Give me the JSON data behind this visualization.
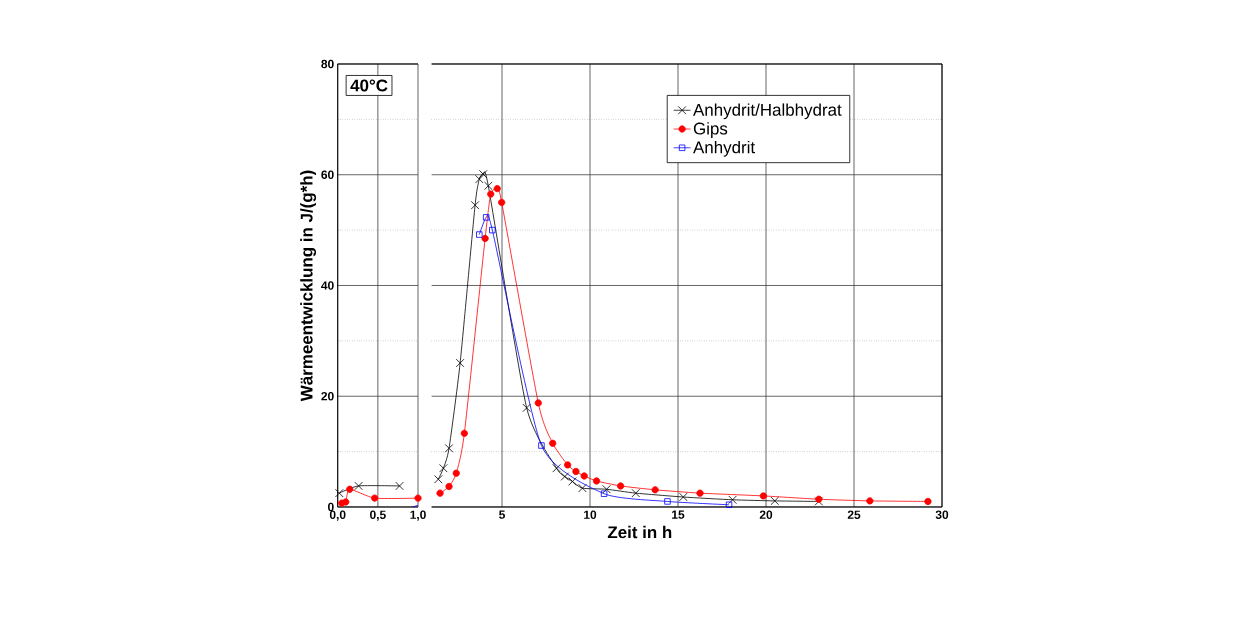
{
  "chart_data": [
    {
      "type": "line",
      "ylabel": "Wärmeentwicklung in J/(g*h)",
      "annotations": [
        "40°C"
      ],
      "xlim": [
        0,
        1.0
      ],
      "xticks": [
        {
          "value": 0,
          "label": "0,0"
        },
        {
          "value": 0.5,
          "label": "0,5"
        },
        {
          "value": 1.0,
          "label": "1,0"
        }
      ],
      "ylim": [
        0,
        80
      ],
      "yticks": [
        0,
        {
          "value": 10,
          "label": null
        },
        20,
        {
          "value": 30,
          "label": null
        },
        40,
        {
          "value": 50,
          "label": null
        },
        60,
        {
          "value": 70,
          "label": null
        },
        80
      ],
      "grid": true,
      "series": [
        {
          "color": "#000000",
          "marker": "cross",
          "x": [
            0.02,
            0.26,
            0.77
          ],
          "values": [
            2.5,
            3.8,
            3.8
          ]
        },
        {
          "color": "#ff0000",
          "marker": "circle",
          "x": [
            0.05,
            0.1,
            0.15,
            0.46,
            1.0
          ],
          "values": [
            0.7,
            0.9,
            3.2,
            1.6,
            1.6
          ]
        },
        {
          "color": "#0000ff",
          "marker": "none",
          "x": [
            0.93,
            1.0
          ],
          "values": [
            0,
            0.3
          ]
        }
      ]
    },
    {
      "type": "line",
      "xlabel": "Zeit in h",
      "tick_labels": "x",
      "xlim": [
        1,
        30
      ],
      "xticks": [
        5,
        10,
        15,
        20,
        25,
        30
      ],
      "ylim": [
        0,
        80
      ],
      "yticks": [
        0,
        {
          "value": 10,
          "label": null
        },
        20,
        {
          "value": 30,
          "label": null
        },
        40,
        {
          "value": 50,
          "label": null
        },
        60,
        {
          "value": 70,
          "label": null
        },
        80
      ],
      "grid": true,
      "legend": "top right",
      "series": [
        {
          "name": "Anhydrit/Halbhydrat",
          "color": "#000000",
          "marker": "cross",
          "x": [
            1.38,
            1.67,
            1.99,
            2.62,
            3.47,
            3.71,
            3.93,
            4.22,
            6.4,
            8.1,
            8.57,
            9.0,
            9.57,
            10.94,
            12.6,
            15.3,
            18.1,
            20.5,
            23.0
          ],
          "values": [
            5.0,
            7.0,
            10.6,
            26,
            54.5,
            59.2,
            60.1,
            58.0,
            17.9,
            7.0,
            5.5,
            4.6,
            3.4,
            3.2,
            2.5,
            1.8,
            1.3,
            1.1,
            1.0
          ]
        },
        {
          "name": "Gips",
          "color": "#ff0000",
          "marker": "circle",
          "x": [
            1.48,
            1.99,
            2.4,
            2.86,
            4.04,
            4.36,
            4.73,
            4.98,
            7.06,
            7.88,
            8.73,
            9.2,
            9.67,
            10.37,
            11.74,
            13.7,
            16.25,
            19.85,
            23.0,
            25.9,
            29.2
          ],
          "values": [
            2.5,
            3.7,
            6.1,
            13.3,
            48.5,
            56.5,
            57.5,
            55.0,
            18.8,
            11.5,
            7.6,
            6.4,
            5.6,
            4.7,
            3.8,
            3.1,
            2.5,
            2.0,
            1.4,
            1.1,
            1.0
          ]
        },
        {
          "name": "Anhydrit",
          "color": "#0000ff",
          "marker": "square",
          "x": [
            3.71,
            4.1,
            4.45,
            7.24,
            10.8,
            14.4,
            17.9
          ],
          "values": [
            49.2,
            52.3,
            50.0,
            11.1,
            2.4,
            1.0,
            0.4
          ]
        }
      ]
    }
  ]
}
